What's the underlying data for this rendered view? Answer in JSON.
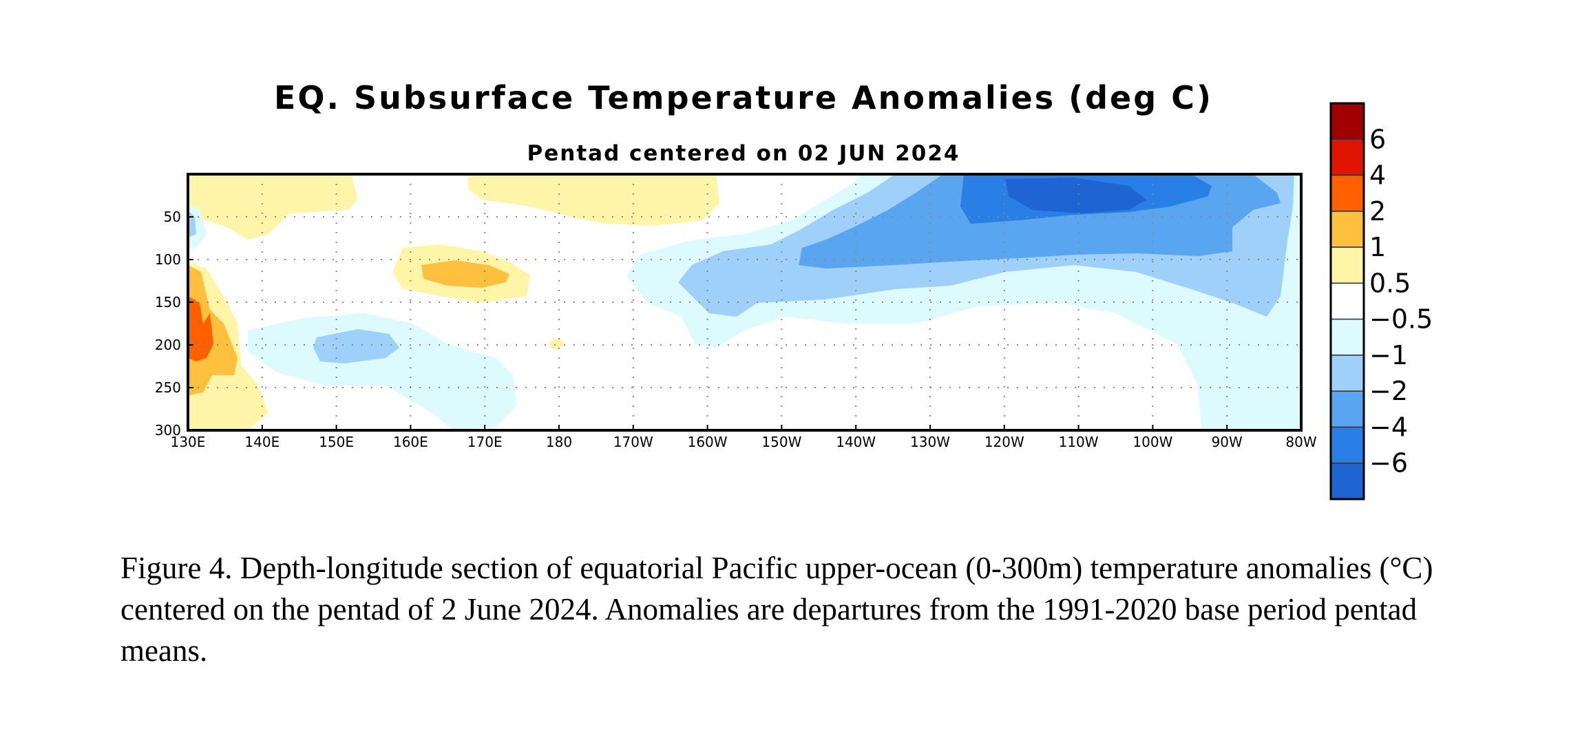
{
  "chart_data": {
    "type": "heatmap",
    "title": "EQ. Subsurface Temperature Anomalies (deg C)",
    "subtitle": "Pentad centered on 02 JUN 2024",
    "xlabel": "",
    "ylabel": "",
    "x_ticks": [
      "130E",
      "140E",
      "150E",
      "160E",
      "170E",
      "180",
      "170W",
      "160W",
      "150W",
      "140W",
      "130W",
      "120W",
      "110W",
      "100W",
      "90W",
      "80W"
    ],
    "y_ticks": [
      "50",
      "100",
      "150",
      "200",
      "250",
      "300"
    ],
    "x_range_deg_east": [
      130,
      280
    ],
    "y_range_depth_m": [
      0,
      300
    ],
    "y_inverted": true,
    "grid": true,
    "grid_style": "dotted",
    "colorbar": {
      "levels": [
        "6",
        "4",
        "2",
        "1",
        "0.5",
        "−0.5",
        "−1",
        "−2",
        "−4",
        "−6"
      ],
      "colors": [
        "#a00000",
        "#e01400",
        "#ff6000",
        "#ffc040",
        "#fff5a8",
        "#ffffff",
        "#dcfaff",
        "#9fd0fa",
        "#5aa5f0",
        "#2a7fe6",
        "#1e64d2"
      ],
      "placement": "right"
    },
    "anomaly_features": [
      {
        "name": "warm near surface 130E-150E",
        "lon_east": [
          130,
          150
        ],
        "depth_m": [
          0,
          80
        ],
        "value_range": [
          0.5,
          1
        ]
      },
      {
        "name": "warm subsurface 130E-135E",
        "lon_east": [
          130,
          136
        ],
        "depth_m": [
          120,
          290
        ],
        "value_range": [
          1,
          2
        ]
      },
      {
        "name": "warm core 160E-170E",
        "lon_east": [
          161,
          170
        ],
        "depth_m": [
          110,
          140
        ],
        "value_range": [
          1,
          2
        ]
      },
      {
        "name": "warm near surface 170E-160W",
        "lon_east": [
          168,
          197
        ],
        "depth_m": [
          0,
          70
        ],
        "value_range": [
          0.5,
          1
        ]
      },
      {
        "name": "cool 150E-170E",
        "lon_east": [
          150,
          170
        ],
        "depth_m": [
          150,
          290
        ],
        "value_range": [
          -2,
          -0.5
        ]
      },
      {
        "name": "cold tongue east Pacific",
        "lon_east": [
          185,
          277
        ],
        "depth_m": [
          0,
          300
        ],
        "value_range": [
          -4,
          -0.5
        ]
      },
      {
        "name": "cold core 120W-100W",
        "lon_east": [
          235,
          260
        ],
        "depth_m": [
          0,
          40
        ],
        "value_range": [
          -6,
          -4
        ]
      }
    ]
  },
  "caption": "Figure 4. Depth-longitude section of equatorial Pacific upper-ocean (0-300m) temperature anomalies (°C) centered on the pentad of 2 June 2024. Anomalies are departures from the 1991-2020 base period pentad means."
}
